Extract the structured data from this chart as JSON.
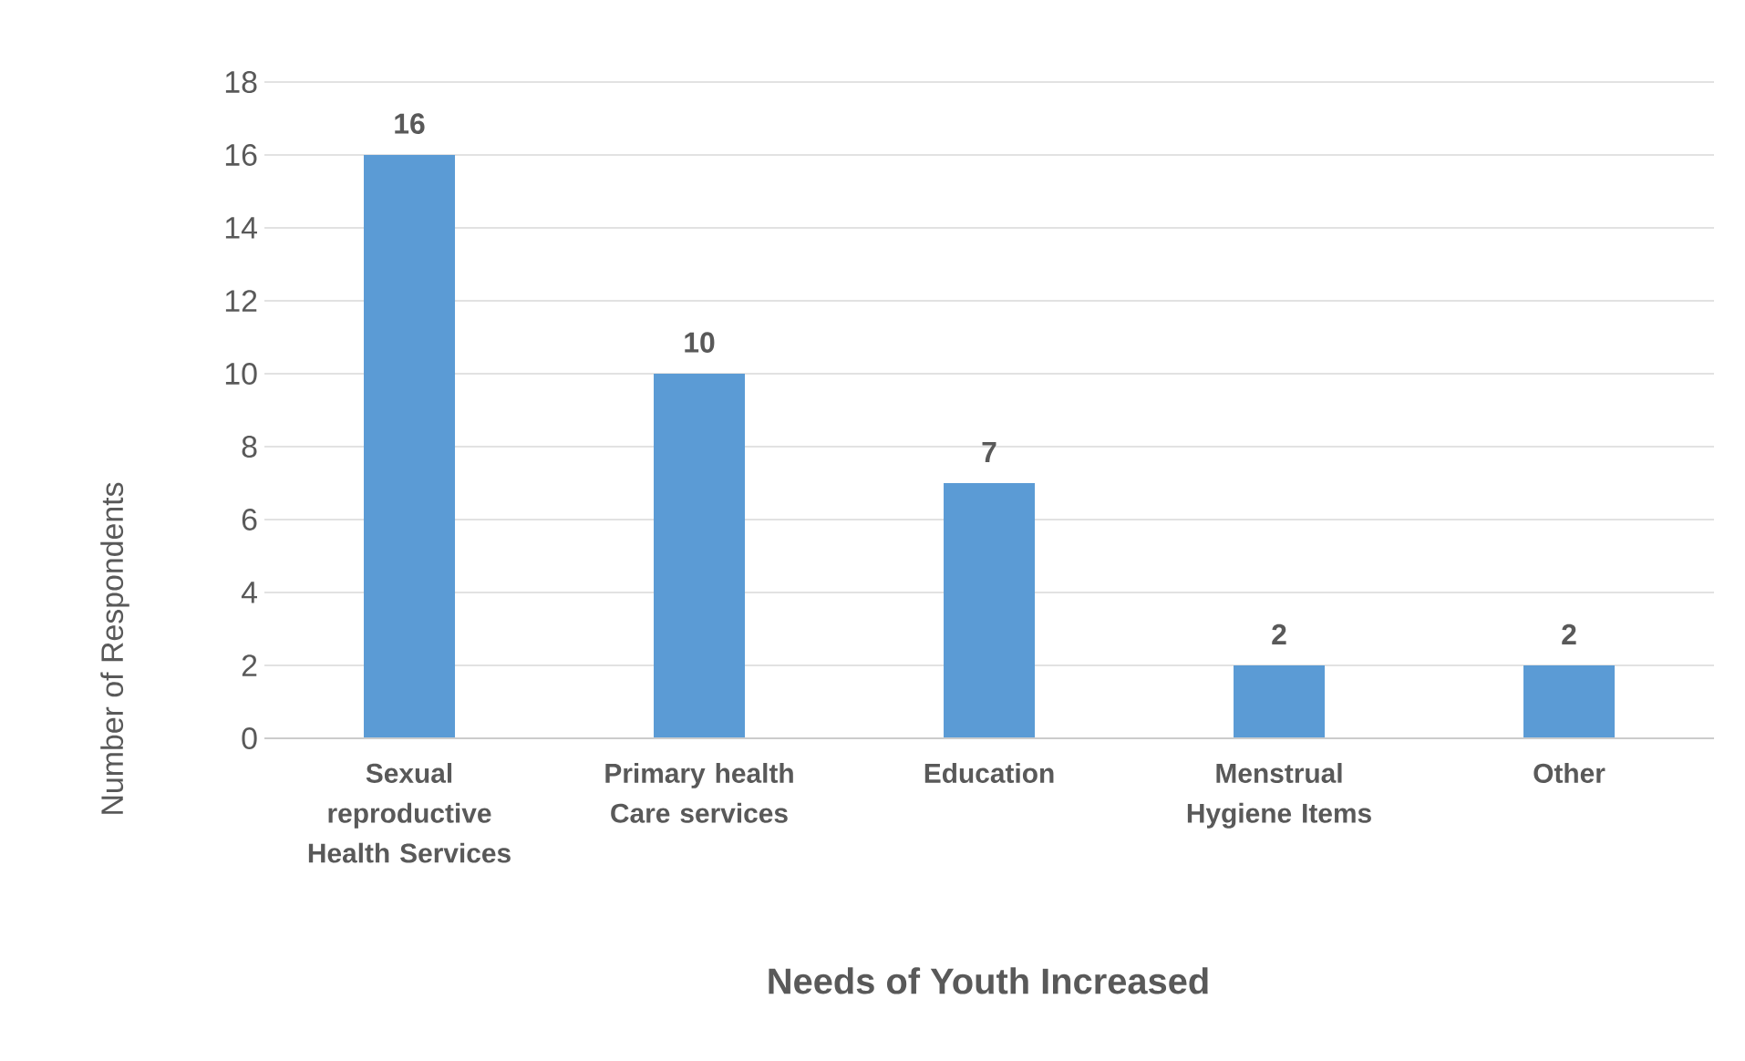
{
  "chart_data": {
    "type": "bar",
    "xlabel": "Needs of Youth Increased",
    "ylabel": "Number of Respondents",
    "categories": [
      "Sexual reproductive Health Services",
      "Primary health Care services",
      "Education",
      "Menstrual Hygiene Items",
      "Other"
    ],
    "values": [
      16,
      10,
      7,
      2,
      2
    ],
    "color": "#5b9bd5",
    "ylim": [
      0,
      18
    ],
    "yticks": [
      0,
      2,
      4,
      6,
      8,
      10,
      12,
      14,
      16,
      18
    ],
    "grid": "y",
    "data_labels": true
  }
}
